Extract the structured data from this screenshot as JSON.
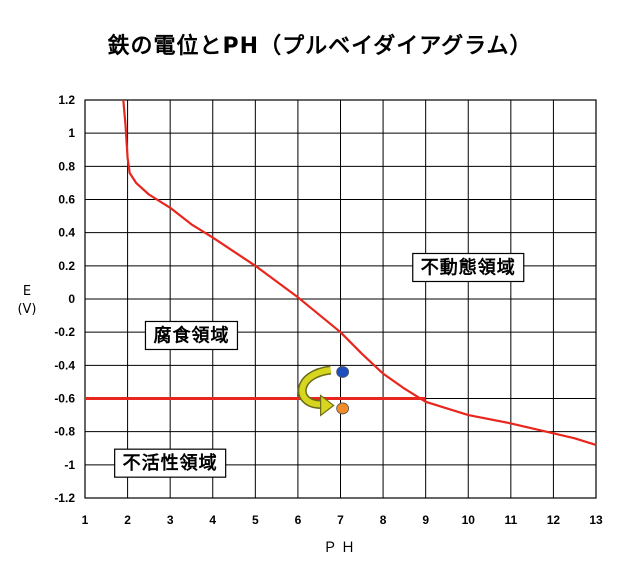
{
  "chart_data": {
    "type": "line",
    "title": "鉄の電位とPH（プルベイダイアグラム）",
    "xlabel": "ＰＨ",
    "ylabel_line1": "E",
    "ylabel_line2": "(V)",
    "xlim": [
      1,
      13
    ],
    "ylim": [
      -1.2,
      1.2
    ],
    "x_ticks": [
      "1",
      "2",
      "3",
      "4",
      "5",
      "6",
      "7",
      "8",
      "9",
      "10",
      "11",
      "12",
      "13"
    ],
    "y_ticks": [
      "1.2",
      "1",
      "0.8",
      "0.6",
      "0.4",
      "0.2",
      "0",
      "-0.2",
      "-0.4",
      "-0.6",
      "-0.8",
      "-1",
      "-1.2"
    ],
    "grid": true,
    "series": [
      {
        "color": "#e8261d",
        "points": [
          [
            1.9,
            1.2
          ],
          [
            1.95,
            1.05
          ],
          [
            2.0,
            0.85
          ],
          [
            2.05,
            0.76
          ],
          [
            2.2,
            0.7
          ],
          [
            2.5,
            0.63
          ],
          [
            3.0,
            0.55
          ],
          [
            3.5,
            0.45
          ],
          [
            4.0,
            0.37
          ],
          [
            5.0,
            0.2
          ],
          [
            6.0,
            0.01
          ],
          [
            7.0,
            -0.2
          ],
          [
            7.5,
            -0.33
          ],
          [
            8.0,
            -0.45
          ],
          [
            8.5,
            -0.54
          ],
          [
            9.0,
            -0.62
          ],
          [
            9.5,
            -0.66
          ],
          [
            10.0,
            -0.7
          ],
          [
            11.0,
            -0.75
          ],
          [
            12.0,
            -0.81
          ],
          [
            12.5,
            -0.84
          ],
          [
            13.0,
            -0.88
          ]
        ]
      },
      {
        "color": "#e8261d",
        "points": [
          [
            1,
            -0.6
          ],
          [
            9,
            -0.6
          ]
        ]
      }
    ],
    "regions": [
      {
        "label": "不動態領域",
        "x": 10.0,
        "y": 0.19
      },
      {
        "label": "腐食領域",
        "x": 3.5,
        "y": -0.22
      },
      {
        "label": "不活性領域",
        "x": 3.0,
        "y": -0.99
      }
    ],
    "markers": [
      {
        "x": 7.05,
        "y": -0.44,
        "color": "#1f4fbf"
      },
      {
        "x": 7.05,
        "y": -0.66,
        "color": "#f28c28"
      }
    ],
    "arrow_color": "#d6d61e"
  }
}
